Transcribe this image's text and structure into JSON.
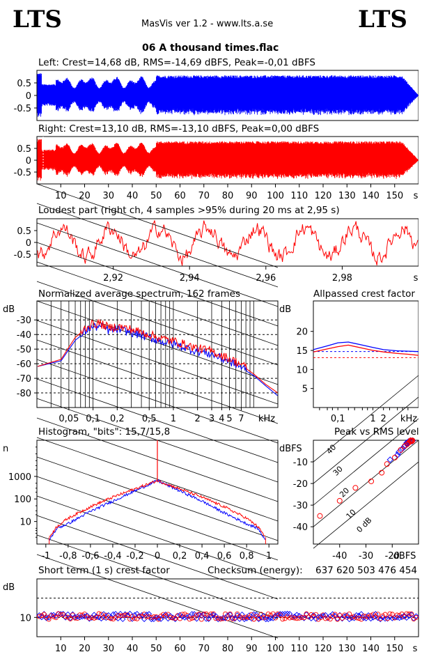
{
  "header": {
    "logo_left": "LTS",
    "logo_right": "LTS",
    "app_title": "MasVis ver 1.2 - www.lts.a.se",
    "file_title": "06 A thousand times.flac"
  },
  "colors": {
    "left": "#0000ff",
    "right": "#ff0000"
  },
  "chart_data": [
    {
      "id": "left",
      "type": "line",
      "title": "Left: Crest=14,68 dB, RMS=-14,69 dBFS, Peak=-0,01 dBFS",
      "ytick_labels": [
        "0.5",
        "0",
        "-0.5"
      ],
      "yticks": [
        0.5,
        0,
        -0.5
      ],
      "ylim": [
        -1,
        1
      ],
      "series": [
        {
          "values": []
        }
      ]
    },
    {
      "id": "right",
      "type": "line",
      "title": "Right: Crest=13,10 dB, RMS=-13,10 dBFS, Peak=0,00 dBFS",
      "ytick_labels": [
        "0.5",
        "0",
        "-0.5"
      ],
      "yticks": [
        0.5,
        0,
        -0.5
      ],
      "ylim": [
        -1,
        1
      ],
      "xlim": [
        0,
        160
      ],
      "xticks": [
        10,
        20,
        30,
        40,
        50,
        60,
        70,
        80,
        90,
        100,
        110,
        120,
        130,
        140,
        150
      ],
      "xtick_labels": [
        "10",
        "20",
        "30",
        "40",
        "50",
        "60",
        "70",
        "80",
        "90",
        "100",
        "110",
        "120",
        "130",
        "140",
        "150"
      ],
      "xunit": "s"
    },
    {
      "id": "loudest",
      "type": "line",
      "title": "Loudest part (right ch, 4 samples >95% during 20 ms at 2,95 s)",
      "ytick_labels": [
        "0.5",
        "0",
        "-0.5"
      ],
      "yticks": [
        0.5,
        0,
        -0.5
      ],
      "ylim": [
        -1,
        1
      ],
      "xlim": [
        2.9,
        3.0
      ],
      "xticks": [
        2.92,
        2.94,
        2.96,
        2.98
      ],
      "xtick_labels": [
        "2,92",
        "2,94",
        "2,96",
        "2,98"
      ],
      "xunit": "s"
    },
    {
      "id": "spectrum",
      "type": "line",
      "title": "Normalized average spectrum, 162 frames",
      "yunit": "dB",
      "yticks": [
        -30,
        -40,
        -50,
        -60,
        -70,
        -80
      ],
      "ytick_labels": [
        "-30",
        "-40",
        "-50",
        "-60",
        "-70",
        "-80"
      ],
      "ylim": [
        -90,
        -17
      ],
      "xlim": [
        0.02,
        20
      ],
      "xscale": "log",
      "xticks": [
        0.05,
        0.1,
        0.2,
        0.5,
        1,
        2,
        3,
        4,
        5,
        7
      ],
      "xtick_labels": [
        "0,05",
        "0,1",
        "0,2",
        "0,5",
        "1",
        "2",
        "3",
        "4",
        "5",
        "7"
      ],
      "xunit": "kHz",
      "x": [
        0.02,
        0.04,
        0.06,
        0.09,
        0.12,
        0.16,
        0.2,
        0.3,
        0.45,
        0.6,
        0.8,
        1,
        1.5,
        2,
        3,
        4,
        5,
        7,
        10,
        14,
        20
      ],
      "series": [
        {
          "values": [
            -62,
            -58,
            -44,
            -36,
            -35,
            -38,
            -37,
            -39,
            -42,
            -44,
            -46,
            -47,
            -50,
            -52,
            -54,
            -57,
            -59,
            -63,
            -68,
            -75,
            -82
          ]
        },
        {
          "values": [
            -62,
            -57,
            -42,
            -34,
            -33,
            -36,
            -35,
            -37,
            -40,
            -42,
            -44,
            -45,
            -48,
            -50,
            -52,
            -55,
            -57,
            -61,
            -67,
            -74,
            -80
          ]
        }
      ]
    },
    {
      "id": "allpassed",
      "type": "line",
      "title": "Allpassed crest factor",
      "yunit": "dB",
      "yticks": [
        20,
        15,
        10,
        5
      ],
      "ytick_labels": [
        "20",
        "15",
        "10",
        "5"
      ],
      "ylim": [
        0,
        28
      ],
      "xlim": [
        0.02,
        20
      ],
      "xscale": "log",
      "xticks": [
        0.1,
        1,
        2
      ],
      "xtick_labels": [
        "0,1",
        "1",
        "2"
      ],
      "xunit": "kHz",
      "x": [
        0.02,
        0.05,
        0.1,
        0.2,
        0.5,
        1,
        2,
        5,
        10,
        20
      ],
      "series": [
        {
          "values": [
            15.2,
            16.2,
            17.0,
            17.2,
            16.4,
            15.8,
            15.2,
            14.9,
            14.8,
            14.7
          ]
        },
        {
          "values": [
            14.6,
            15.4,
            16.0,
            16.4,
            15.6,
            15.0,
            14.6,
            14.2,
            14.0,
            13.7
          ]
        }
      ],
      "reference_lines": [
        {
          "value": 14.7
        },
        {
          "value": 13.1
        }
      ]
    },
    {
      "id": "histogram",
      "type": "line",
      "title": "Histogram, \"bits\": 15,7/15,8",
      "yunit": "n",
      "yscale": "log",
      "yticks": [
        10,
        100,
        1000
      ],
      "ytick_labels": [
        "10",
        "100",
        "1000"
      ],
      "ylim": [
        1,
        40000
      ],
      "xlim": [
        -1,
        1
      ],
      "xticks": [
        -1,
        -0.8,
        -0.6,
        -0.4,
        -0.2,
        0,
        0.2,
        0.4,
        0.6,
        0.8,
        1
      ],
      "xtick_labels": [
        "-1",
        "-0,8",
        "-0,6",
        "-0,4",
        "-0,2",
        "0",
        "0,2",
        "0,4",
        "0,6",
        "0,8",
        "1"
      ],
      "x": [
        -0.97,
        -0.9,
        -0.8,
        -0.6,
        -0.4,
        -0.2,
        0,
        0.2,
        0.4,
        0.6,
        0.8,
        0.9,
        0.97
      ],
      "series": [
        {
          "values": [
            1.5,
            5,
            8,
            28,
            80,
            230,
            650,
            230,
            80,
            24,
            8,
            5,
            1.5
          ]
        },
        {
          "values": [
            2,
            6,
            14,
            45,
            120,
            280,
            650,
            280,
            120,
            45,
            14,
            6,
            2
          ]
        }
      ]
    },
    {
      "id": "peak_rms",
      "type": "scatter",
      "title": "Peak vs RMS level",
      "yunit": "dBFS",
      "xunit": "dBFS",
      "yticks": [
        -10,
        -20,
        -30,
        -40
      ],
      "ytick_labels": [
        "-10",
        "-20",
        "-30",
        "-40"
      ],
      "xticks": [
        -40,
        -30,
        -20
      ],
      "xtick_labels": [
        "-40",
        "-30",
        "-20"
      ],
      "xlim": [
        -50,
        -10
      ],
      "ylim": [
        -48,
        0
      ],
      "annotations": [
        "40",
        "30",
        "20",
        "10",
        "0 dB"
      ],
      "series": [
        {
          "x": [
            -14.5,
            -13.8,
            -13.2,
            -15.1,
            -16.0,
            -14.0,
            -13.0,
            -12.5,
            -12.2,
            -17.5,
            -18.0,
            -20.8,
            -15.5,
            -14.2,
            -13.5
          ],
          "y": [
            -1.2,
            -0.6,
            -0.3,
            -2.4,
            -3.8,
            -1.0,
            -0.1,
            -0.5,
            -0.2,
            -5.5,
            -6.8,
            -9.0,
            -3.0,
            -1.7,
            -0.8
          ]
        },
        {
          "x": [
            -13.6,
            -13.2,
            -12.8,
            -14.3,
            -15.2,
            -16.8,
            -13.0,
            -12.5,
            -19.0,
            -24.0,
            -28.0,
            -34.0,
            -40.0,
            -47.5,
            -22.0,
            -12.3
          ],
          "y": [
            -1.0,
            -0.5,
            -0.2,
            -1.8,
            -2.6,
            -4.5,
            -0.1,
            -0.4,
            -8.0,
            -15.0,
            -19.0,
            -22.0,
            -28.0,
            -35.0,
            -11.0,
            -0.1
          ]
        }
      ]
    },
    {
      "id": "short_term",
      "type": "scatter",
      "title": "Short term (1 s) crest factor",
      "checksum_label": "Checksum (energy):",
      "checksum_value": "637 620 503 476 454",
      "yunit": "dB",
      "yticks": [
        10
      ],
      "ytick_labels": [
        "10"
      ],
      "ylim": [
        0,
        30
      ],
      "xlim": [
        0,
        160
      ],
      "xticks": [
        10,
        20,
        30,
        40,
        50,
        60,
        70,
        80,
        90,
        100,
        110,
        120,
        130,
        140,
        150
      ],
      "xtick_labels": [
        "10",
        "20",
        "30",
        "40",
        "50",
        "60",
        "70",
        "80",
        "90",
        "100",
        "110",
        "120",
        "130",
        "140",
        "150"
      ],
      "xunit": "s",
      "reference_lines": [
        {
          "value": 20
        },
        {
          "value": 10
        }
      ]
    }
  ]
}
